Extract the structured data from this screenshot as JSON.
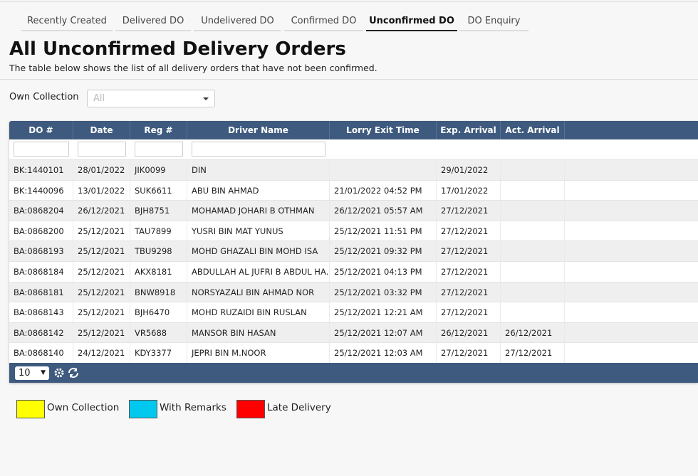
{
  "tabs": [
    "Recently Created",
    "Delivered DO",
    "Undelivered DO",
    "Confirmed DO",
    "Unconfirmed DO",
    "DO Enquiry"
  ],
  "header": {
    "title": "All Unconfirmed Delivery Orders",
    "subtitle": "The table below shows the list of all delivery orders that have not been confirmed."
  },
  "filter": {
    "label": "Own Collection",
    "placeholder": "All"
  },
  "table": {
    "columns": [
      "DO #",
      "Date",
      "Reg #",
      "Driver Name",
      "Lorry Exit Time",
      "Exp. Arrival",
      "Act. Arrival"
    ],
    "rows": [
      [
        "BK:1440101",
        "28/01/2022",
        "JIK0099",
        "DIN",
        null,
        "29/01/2022",
        null
      ],
      [
        "BK:1440096",
        "13/01/2022",
        "SUK6611",
        "ABU BIN AHMAD",
        "21/01/2022 04:52 PM",
        "17/01/2022",
        null
      ],
      [
        "BA:0868204",
        "26/12/2021",
        "BJH8751",
        "MOHAMAD JOHARI B OTHMAN",
        "26/12/2021 05:57 AM",
        "27/12/2021",
        null
      ],
      [
        "BA:0868200",
        "25/12/2021",
        "TAU7899",
        "YUSRI BIN MAT YUNUS",
        "25/12/2021 11:51 PM",
        "27/12/2021",
        null
      ],
      [
        "BA:0868193",
        "25/12/2021",
        "TBU9298",
        "MOHD GHAZALI BIN MOHD ISA",
        "25/12/2021 09:32 PM",
        "27/12/2021",
        null
      ],
      [
        "BA:0868184",
        "25/12/2021",
        "AKX8181",
        "ABDULLAH AL JUFRI B ABDUL HA...",
        "25/12/2021 04:13 PM",
        "27/12/2021",
        null
      ],
      [
        "BA:0868181",
        "25/12/2021",
        "BNW8918",
        "NORSYAZALI BIN AHMAD NOR",
        "25/12/2021 03:32 PM",
        "27/12/2021",
        null
      ],
      [
        "BA:0868143",
        "25/12/2021",
        "BJH6470",
        "MOHD RUZAIDI BIN RUSLAN",
        "25/12/2021 12:21 AM",
        "27/12/2021",
        null
      ],
      [
        "BA:0868142",
        "25/12/2021",
        "VR5688",
        "MANSOR BIN HASAN",
        "25/12/2021 12:07 AM",
        "26/12/2021",
        "26/12/2021"
      ],
      [
        "BA:0868140",
        "24/12/2021",
        "KDY3377",
        "JEPRI BIN M.NOOR",
        "25/12/2021 12:03 AM",
        "27/12/2021",
        "27/12/2021"
      ]
    ],
    "page_size": "10"
  },
  "legend": [
    {
      "label": "Own Collection",
      "color": "#ffff00"
    },
    {
      "label": "With Remarks",
      "color": "#00c8ee"
    },
    {
      "label": "Late Delivery",
      "color": "#ff0000"
    }
  ]
}
